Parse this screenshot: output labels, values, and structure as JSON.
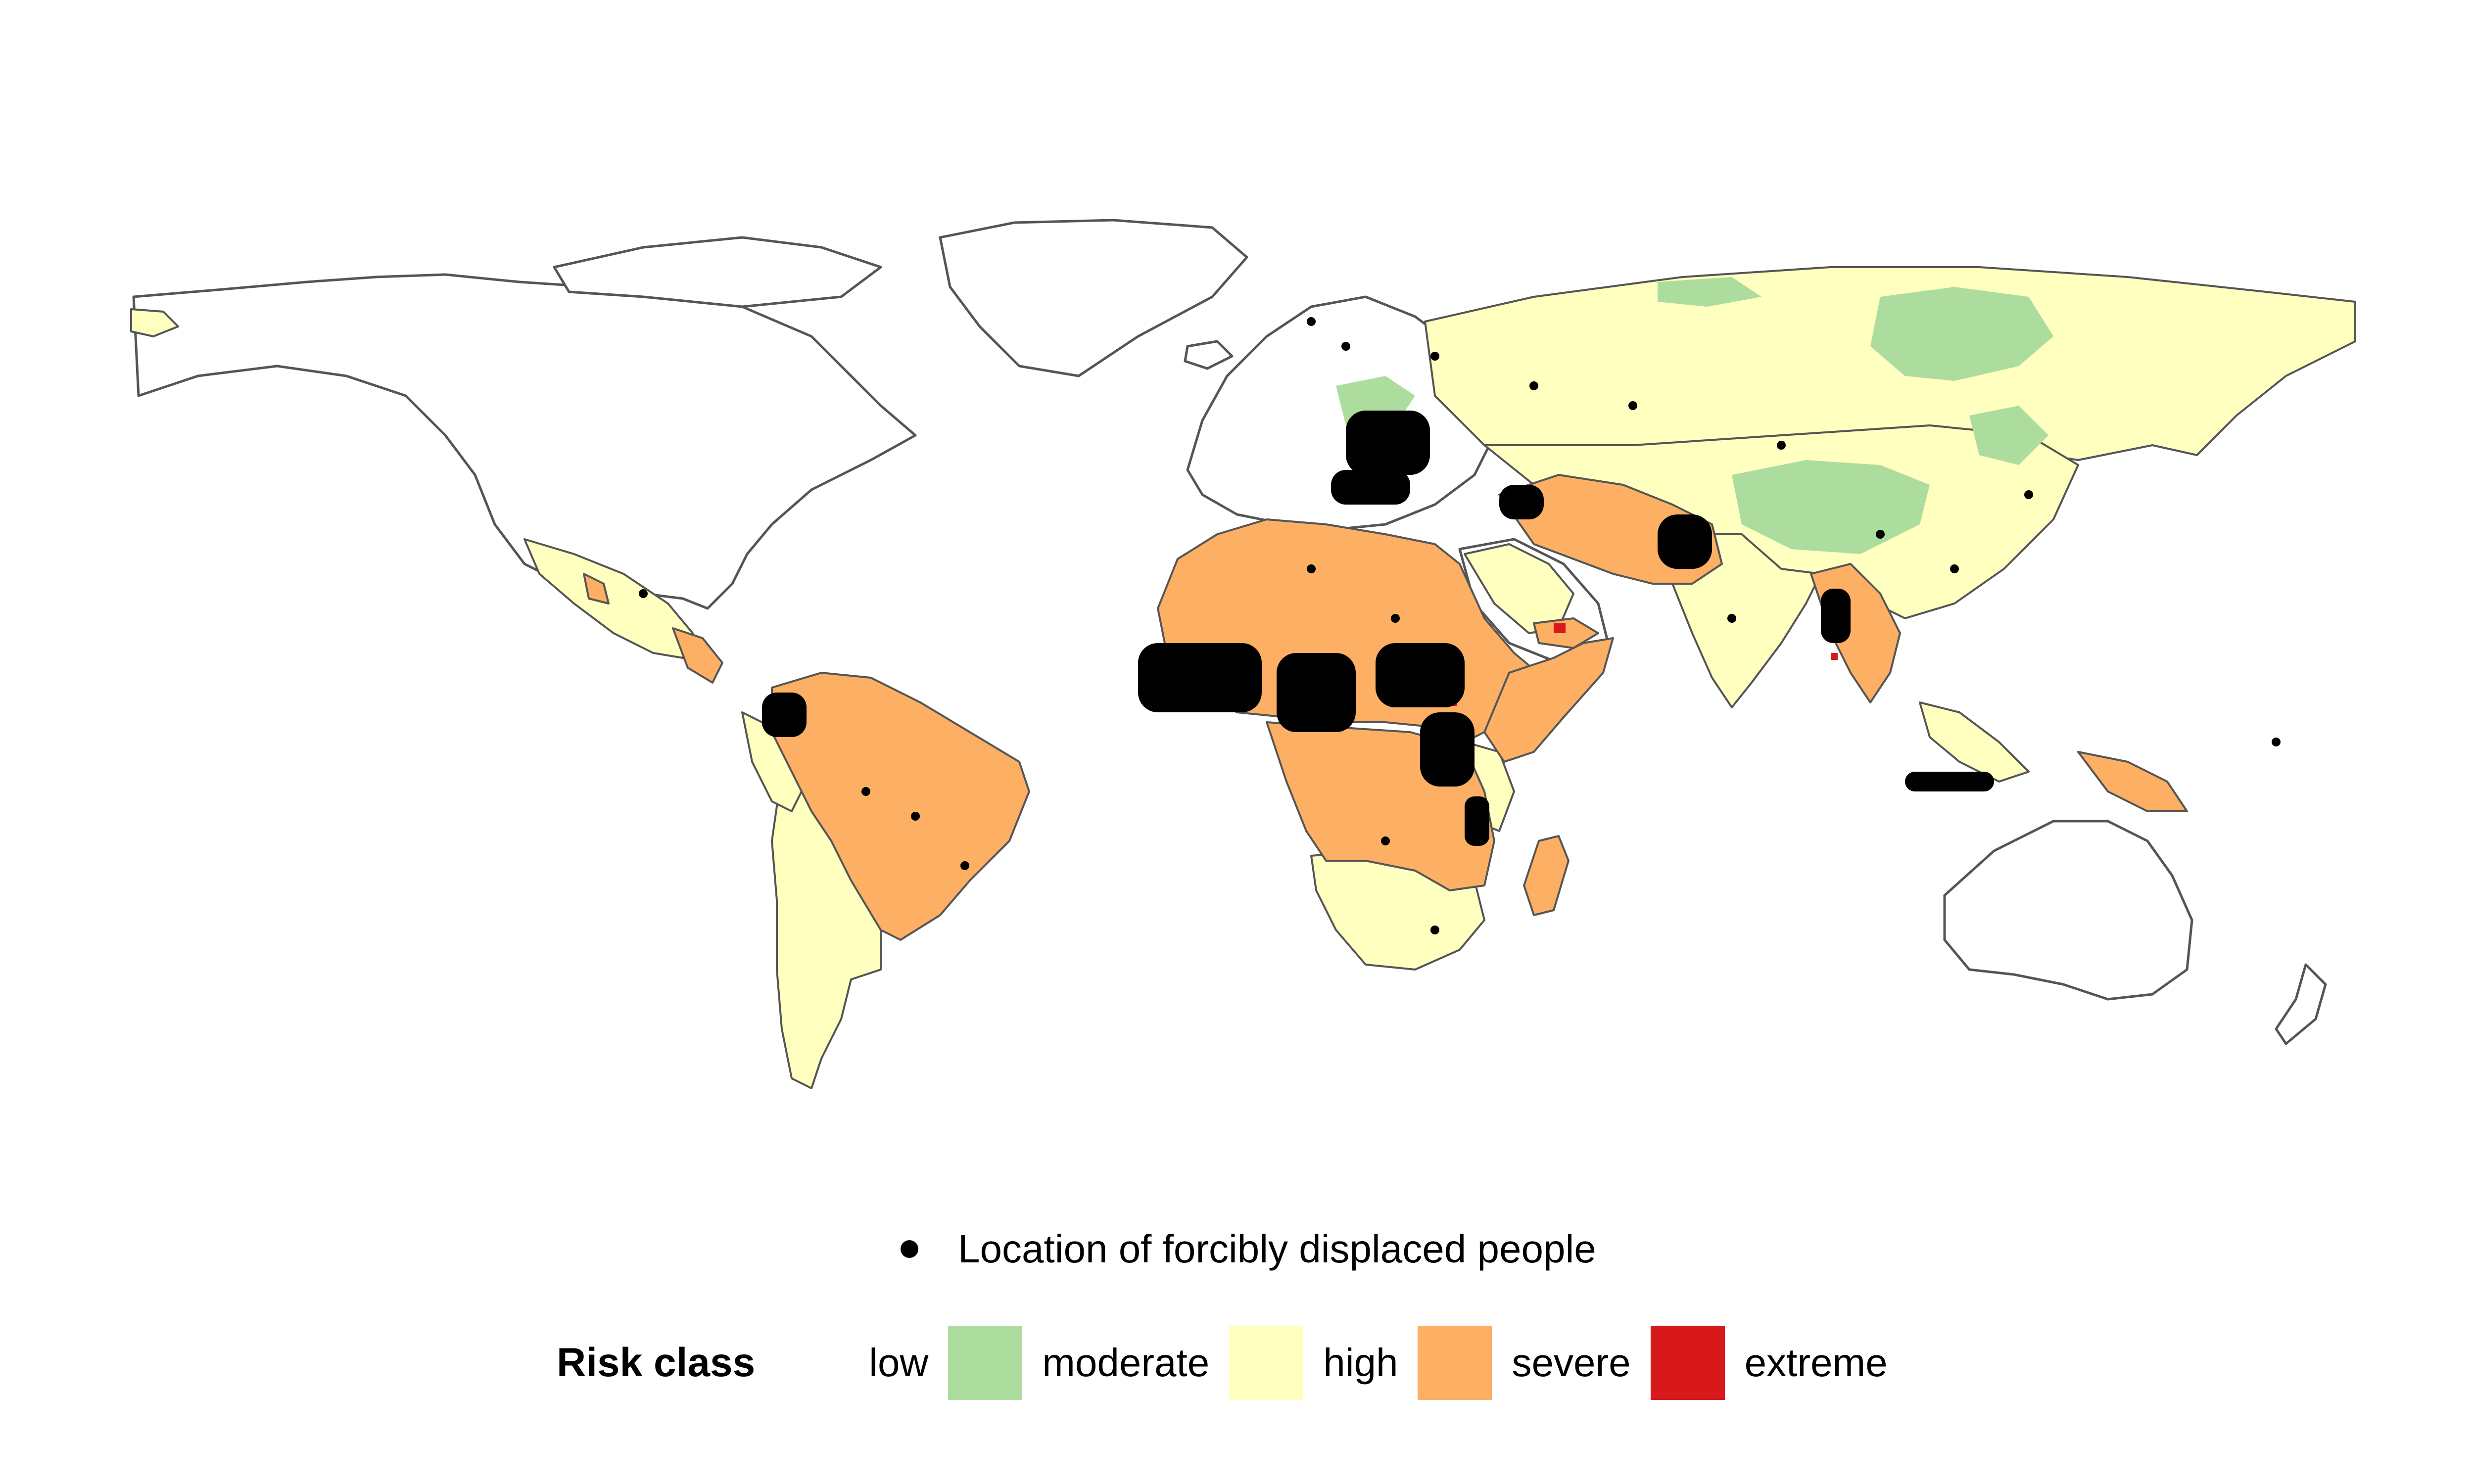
{
  "map": {
    "colors": {
      "land_outline": "#555555",
      "moderate": "#addd9e",
      "high": "#ffffc0",
      "severe": "#fdaf63",
      "extreme": "#d7191c",
      "point": "#000000"
    }
  },
  "legend": {
    "points_label": "Location of forcibly displaced people",
    "risk_title": "Risk class",
    "classes": [
      {
        "label": "low",
        "color": "#ffffff"
      },
      {
        "label": "moderate",
        "color": "#addd9e"
      },
      {
        "label": "high",
        "color": "#ffffc0"
      },
      {
        "label": "severe",
        "color": "#fdaf63"
      },
      {
        "label": "extreme",
        "color": "#d7191c"
      }
    ]
  }
}
